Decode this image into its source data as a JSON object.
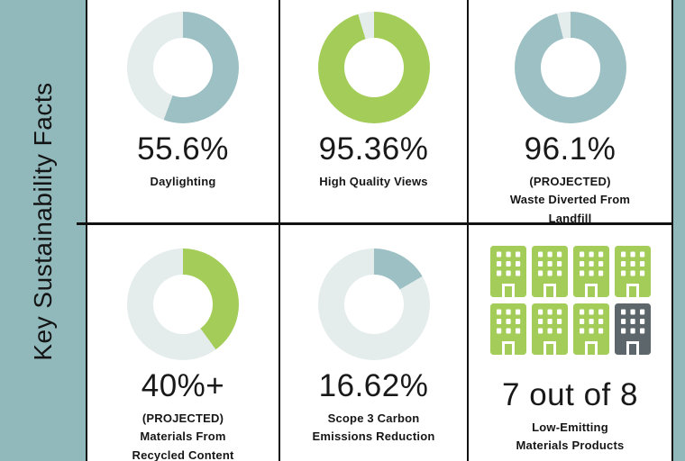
{
  "sidebar": {
    "title": "Key Sustainability Facts"
  },
  "colors": {
    "teal": "#9cc0c3",
    "green": "#a3cc59",
    "track": "#e4ecec",
    "gray": "#5d666a",
    "sidebar_bg": "#91b9bc",
    "border": "#121212"
  },
  "cells": [
    {
      "type": "donut",
      "pct": 55.6,
      "fill": "teal",
      "value": "55.6%",
      "labels": [
        "Daylighting"
      ]
    },
    {
      "type": "donut",
      "pct": 95.36,
      "fill": "green",
      "value": "95.36%",
      "labels": [
        "High Quality Views"
      ]
    },
    {
      "type": "donut",
      "pct": 96.1,
      "fill": "teal",
      "value": "96.1%",
      "labels": [
        "(PROJECTED)",
        "Waste Diverted From",
        "Landfill"
      ]
    },
    {
      "type": "donut",
      "pct": 40,
      "fill": "green",
      "value": "40%+",
      "labels": [
        "(PROJECTED)",
        "Materials From",
        "Recycled Content"
      ]
    },
    {
      "type": "donut",
      "pct": 16.62,
      "fill": "teal",
      "value": "16.62%",
      "labels": [
        "Scope 3 Carbon",
        "Emissions Reduction"
      ]
    },
    {
      "type": "pictogram",
      "total": 8,
      "highlighted": 7,
      "value": "7 out of 8",
      "labels": [
        "Low-Emitting",
        "Materials Products"
      ]
    }
  ],
  "chart_data": [
    {
      "type": "pie",
      "subtype": "donut",
      "title": "Daylighting",
      "labels": [
        "Daylighting",
        "Remainder"
      ],
      "values": [
        55.6,
        44.4
      ],
      "center_label": "55.6%",
      "colors": [
        "#9cc0c3",
        "#e4ecec"
      ],
      "start_angle_deg": 0,
      "direction": "clockwise"
    },
    {
      "type": "pie",
      "subtype": "donut",
      "title": "High Quality Views",
      "labels": [
        "High Quality Views",
        "Remainder"
      ],
      "values": [
        95.36,
        4.64
      ],
      "center_label": "95.36%",
      "colors": [
        "#a3cc59",
        "#e4ecec"
      ],
      "start_angle_deg": 0,
      "direction": "clockwise"
    },
    {
      "type": "pie",
      "subtype": "donut",
      "title": "Waste Diverted From Landfill (PROJECTED)",
      "labels": [
        "Waste Diverted From Landfill",
        "Remainder"
      ],
      "values": [
        96.1,
        3.9
      ],
      "center_label": "96.1%",
      "colors": [
        "#9cc0c3",
        "#e4ecec"
      ],
      "start_angle_deg": 0,
      "direction": "clockwise"
    },
    {
      "type": "pie",
      "subtype": "donut",
      "title": "Materials From Recycled Content (PROJECTED)",
      "labels": [
        "Materials From Recycled Content",
        "Remainder"
      ],
      "values": [
        40,
        60
      ],
      "center_label": "40%+",
      "colors": [
        "#a3cc59",
        "#e4ecec"
      ],
      "start_angle_deg": 0,
      "direction": "clockwise"
    },
    {
      "type": "pie",
      "subtype": "donut",
      "title": "Scope 3 Carbon Emissions Reduction",
      "labels": [
        "Scope 3 Carbon Emissions Reduction",
        "Remainder"
      ],
      "values": [
        16.62,
        83.38
      ],
      "center_label": "16.62%",
      "colors": [
        "#9cc0c3",
        "#e4ecec"
      ],
      "start_angle_deg": 0,
      "direction": "clockwise"
    },
    {
      "type": "pictogram",
      "title": "Low-Emitting Materials Products",
      "label": "7 out of 8",
      "value": 7,
      "total": 8,
      "icon": "building",
      "colors": {
        "highlighted": "#a3cc59",
        "remainder": "#5d666a"
      }
    }
  ]
}
